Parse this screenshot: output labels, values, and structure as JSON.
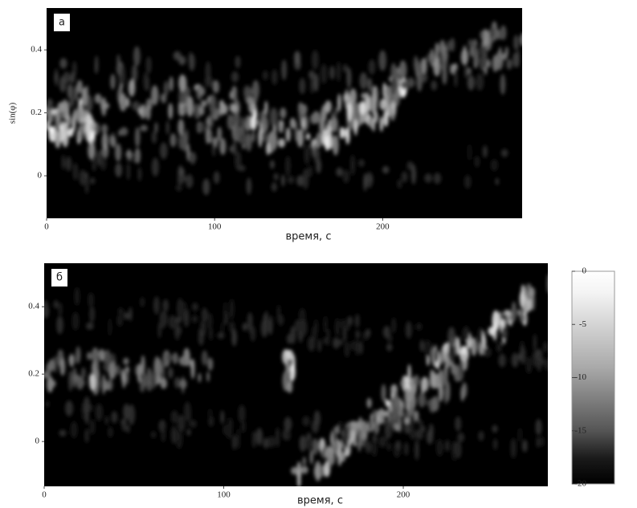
{
  "chart_data": [
    {
      "type": "heatmap",
      "label": "а",
      "xlabel": "время, с",
      "ylabel": "sin(φ)",
      "xlim": [
        0,
        283
      ],
      "ylim": [
        -0.135,
        0.533
      ],
      "xticks": [
        0,
        100,
        200
      ],
      "yticks": [
        0,
        0.2,
        0.4
      ]
    },
    {
      "type": "heatmap",
      "label": "б",
      "xlabel": "время, с",
      "xlim": [
        0,
        280.5
      ],
      "ylim": [
        -0.133,
        0.529
      ],
      "xticks": [
        0,
        100,
        200
      ],
      "yticks": [
        0,
        0.2,
        0.4
      ]
    },
    {
      "type": "colorbar",
      "ylim": [
        -20,
        0
      ],
      "yticks": [
        0,
        -5,
        -10,
        -15,
        -20
      ]
    }
  ]
}
